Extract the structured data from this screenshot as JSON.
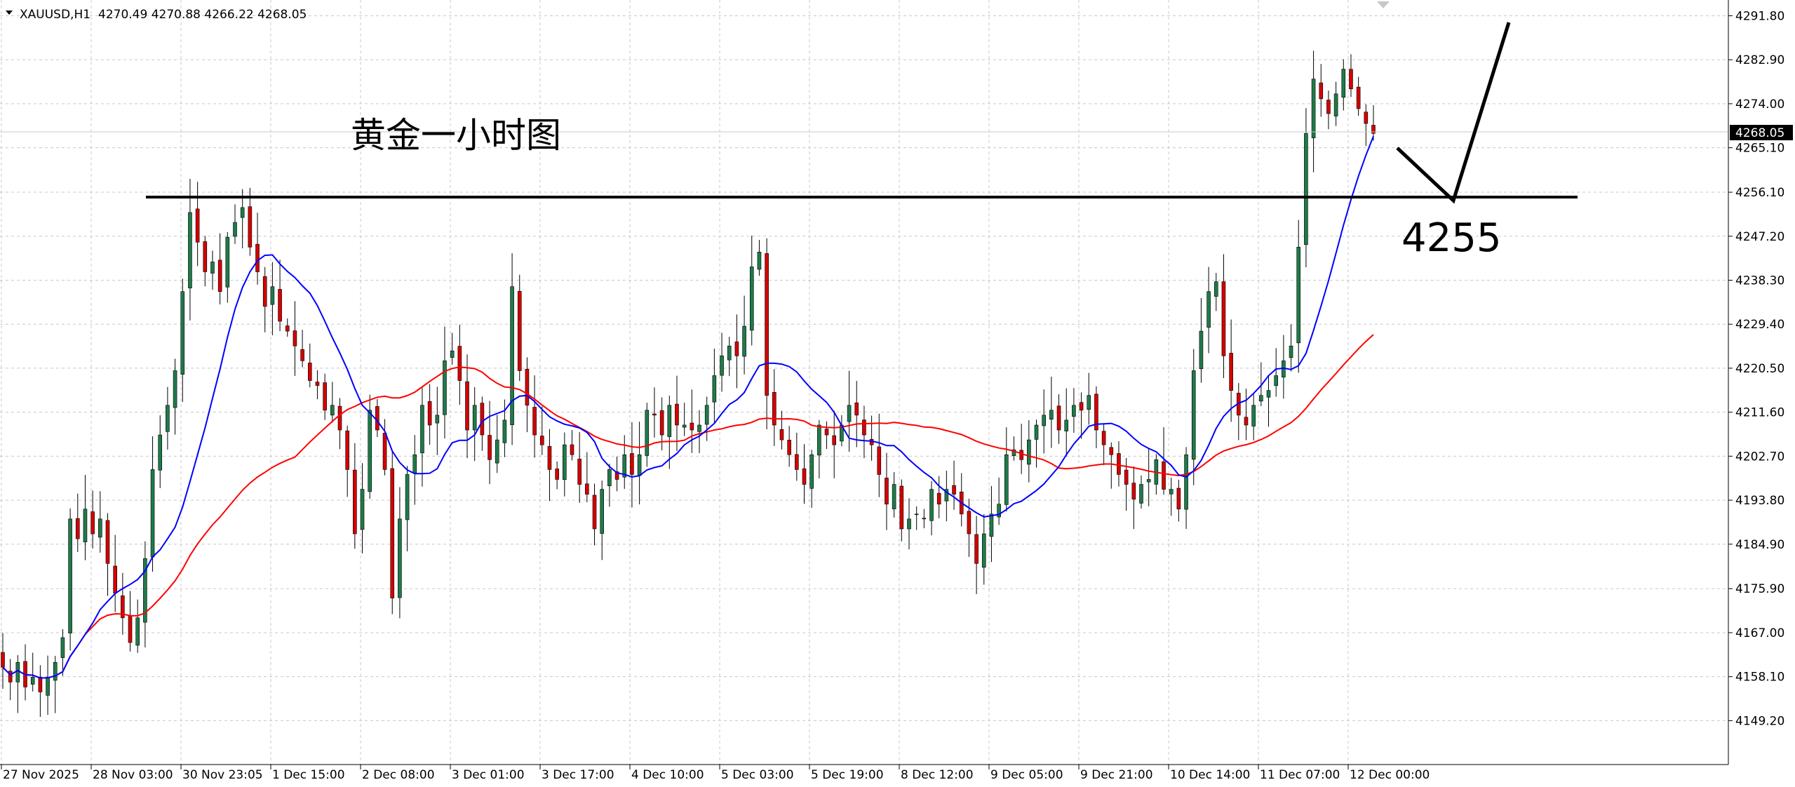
{
  "header": {
    "symbol": "XAUUSD,H1",
    "ohlc": "4270.49 4270.88 4266.22 4268.05"
  },
  "annotations": {
    "title": "黄金一小时图",
    "level_label": "4255",
    "level_value": 4255
  },
  "current_price": "4268.05",
  "colors": {
    "bull": "#1f7a4a",
    "bear": "#d40000",
    "wick": "#000000",
    "ma_fast": "#0000ff",
    "ma_slow": "#ff0000",
    "grid": "#c8c8c8",
    "hline": "#000000"
  },
  "chart_data": {
    "type": "candlestick",
    "title": "黄金一小时图",
    "symbol": "XAUUSD,H1",
    "ylim": [
      4145,
      4293
    ],
    "y_ticks": [
      "4291.80",
      "4282.90",
      "4274.00",
      "4265.10",
      "4256.10",
      "4247.20",
      "4238.30",
      "4229.40",
      "4220.50",
      "4211.60",
      "4202.70",
      "4193.80",
      "4184.90",
      "4175.90",
      "4167.00",
      "4158.10",
      "4149.20"
    ],
    "x_ticks": [
      "27 Nov 2025",
      "28 Nov 03:00",
      "30 Nov 23:05",
      "1 Dec 15:00",
      "2 Dec 08:00",
      "3 Dec 01:00",
      "3 Dec 17:00",
      "4 Dec 10:00",
      "5 Dec 03:00",
      "5 Dec 19:00",
      "8 Dec 12:00",
      "9 Dec 05:00",
      "9 Dec 21:00",
      "10 Dec 14:00",
      "11 Dec 07:00",
      "12 Dec 00:00"
    ],
    "close_path": [
      4160,
      4157,
      4161,
      4156,
      4158,
      4155,
      4158,
      4161,
      4166,
      4190,
      4186,
      4192,
      4187,
      4190,
      4181,
      4175,
      4170,
      4165,
      4170,
      4182,
      4200,
      4207,
      4213,
      4220,
      4236,
      4252,
      4246,
      4240,
      4242,
      4236,
      4247,
      4250,
      4253,
      4245,
      4240,
      4233,
      4237,
      4230,
      4228,
      4225,
      4222,
      4218,
      4217,
      4212,
      4213,
      4208,
      4200,
      4187,
      4196,
      4212,
      4208,
      4200,
      4174,
      4190,
      4199,
      4203,
      4213,
      4209,
      4211,
      4222,
      4224,
      4218,
      4208,
      4213,
      4207,
      4202,
      4206,
      4210,
      4237,
      4220,
      4213,
      4207,
      4205,
      4200,
      4198,
      4205,
      4203,
      4197,
      4195,
      4188,
      4196,
      4200,
      4198,
      4203,
      4199,
      4203,
      4212,
      4211,
      4207,
      4213,
      4209,
      4209,
      4208,
      4209,
      4213,
      4219,
      4223,
      4225,
      4223,
      4229,
      4241,
      4244,
      4215,
      4209,
      4206,
      4203,
      4200,
      4197,
      4203,
      4209,
      4207,
      4205,
      4209,
      4213,
      4211,
      4207,
      4205,
      4199,
      4193,
      4197,
      4188,
      4190,
      4191,
      4190,
      4196,
      4193,
      4196,
      4195,
      4191,
      4187,
      4181,
      4187,
      4191,
      4193,
      4203,
      4204,
      4202,
      4206,
      4209,
      4211,
      4212,
      4208,
      4210,
      4213,
      4212,
      4215,
      4208,
      4205,
      4203,
      4199,
      4197,
      4194,
      4197,
      4198,
      4202,
      4196,
      4196,
      4192,
      4203,
      4220,
      4228,
      4236,
      4238,
      4223,
      4216,
      4211,
      4209,
      4213,
      4215,
      4216,
      4219,
      4222,
      4225,
      4245,
      4268,
      4279,
      4275,
      4272,
      4276,
      4281,
      4277,
      4273,
      4270,
      4268
    ],
    "ma_fast_label": "fast moving average (blue)",
    "ma_slow_label": "slow moving average (red)",
    "horizontal_line": 4255,
    "projection": "drop to 4255 then rally above 4290"
  }
}
